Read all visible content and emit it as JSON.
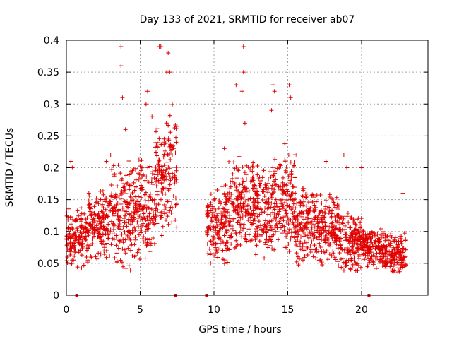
{
  "chart_data": {
    "type": "scatter",
    "title": "Day 133 of 2021, SRMTID for receiver ab07",
    "xlabel": "GPS time / hours",
    "ylabel": "SRMTID / TECUs",
    "xlim": [
      0,
      24.5
    ],
    "ylim": [
      0,
      0.4
    ],
    "x_ticks": [
      0,
      5,
      10,
      15,
      20
    ],
    "x_tick_labels": [
      "0",
      "5",
      "10",
      "15",
      "20"
    ],
    "y_ticks": [
      0,
      0.05,
      0.1,
      0.15,
      0.2,
      0.25,
      0.3,
      0.35,
      0.4
    ],
    "y_tick_labels": [
      "0",
      "0.05",
      "0.1",
      "0.15",
      "0.2",
      "0.25",
      "0.3",
      "0.35",
      "0.4"
    ],
    "grid": true,
    "marker": "plus",
    "color": "#e00000",
    "gaps_hours": [
      [
        7.5,
        9.5
      ]
    ],
    "baseline_markers_x": [
      0.7,
      7.4,
      9.5,
      20.5
    ],
    "segments": [
      {
        "x_start": 0.0,
        "x_end": 1.5,
        "y_low": 0.04,
        "y_high": 0.14,
        "outliers": [
          [
            0.3,
            0.21
          ],
          [
            0.4,
            0.2
          ]
        ]
      },
      {
        "x_start": 1.5,
        "x_end": 3.0,
        "y_low": 0.05,
        "y_high": 0.17,
        "outliers": [
          [
            2.7,
            0.21
          ],
          [
            3.0,
            0.22
          ]
        ]
      },
      {
        "x_start": 3.0,
        "x_end": 4.5,
        "y_low": 0.03,
        "y_high": 0.22,
        "outliers": [
          [
            3.7,
            0.39
          ],
          [
            3.7,
            0.36
          ],
          [
            3.8,
            0.31
          ],
          [
            4.0,
            0.26
          ]
        ]
      },
      {
        "x_start": 4.5,
        "x_end": 6.0,
        "y_low": 0.05,
        "y_high": 0.22,
        "outliers": [
          [
            5.5,
            0.32
          ],
          [
            5.4,
            0.3
          ],
          [
            5.8,
            0.28
          ]
        ]
      },
      {
        "x_start": 6.0,
        "x_end": 7.5,
        "y_low": 0.08,
        "y_high": 0.3,
        "outliers": [
          [
            6.3,
            0.39
          ],
          [
            6.4,
            0.39
          ],
          [
            6.9,
            0.38
          ],
          [
            6.8,
            0.35
          ],
          [
            7.0,
            0.35
          ]
        ]
      },
      {
        "x_start": 9.5,
        "x_end": 11.0,
        "y_low": 0.04,
        "y_high": 0.18,
        "outliers": [
          [
            10.7,
            0.23
          ]
        ]
      },
      {
        "x_start": 11.0,
        "x_end": 12.5,
        "y_low": 0.06,
        "y_high": 0.22,
        "outliers": [
          [
            11.5,
            0.33
          ],
          [
            11.9,
            0.32
          ],
          [
            12.0,
            0.39
          ],
          [
            12.0,
            0.35
          ],
          [
            12.1,
            0.27
          ]
        ]
      },
      {
        "x_start": 12.5,
        "x_end": 14.0,
        "y_low": 0.05,
        "y_high": 0.22,
        "outliers": [
          [
            13.9,
            0.29
          ]
        ]
      },
      {
        "x_start": 14.0,
        "x_end": 15.5,
        "y_low": 0.06,
        "y_high": 0.24,
        "outliers": [
          [
            14.0,
            0.33
          ],
          [
            14.1,
            0.32
          ],
          [
            15.1,
            0.33
          ],
          [
            15.2,
            0.31
          ]
        ]
      },
      {
        "x_start": 15.5,
        "x_end": 17.0,
        "y_low": 0.04,
        "y_high": 0.18,
        "outliers": [
          [
            15.6,
            0.22
          ]
        ]
      },
      {
        "x_start": 17.0,
        "x_end": 18.5,
        "y_low": 0.04,
        "y_high": 0.16,
        "outliers": [
          [
            17.6,
            0.21
          ]
        ]
      },
      {
        "x_start": 18.5,
        "x_end": 20.0,
        "y_low": 0.03,
        "y_high": 0.14,
        "outliers": [
          [
            18.8,
            0.22
          ],
          [
            19.0,
            0.2
          ]
        ]
      },
      {
        "x_start": 20.0,
        "x_end": 21.5,
        "y_low": 0.04,
        "y_high": 0.11,
        "outliers": [
          [
            20.0,
            0.2
          ]
        ]
      },
      {
        "x_start": 21.5,
        "x_end": 23.0,
        "y_low": 0.03,
        "y_high": 0.1,
        "outliers": [
          [
            22.8,
            0.16
          ]
        ]
      }
    ]
  }
}
